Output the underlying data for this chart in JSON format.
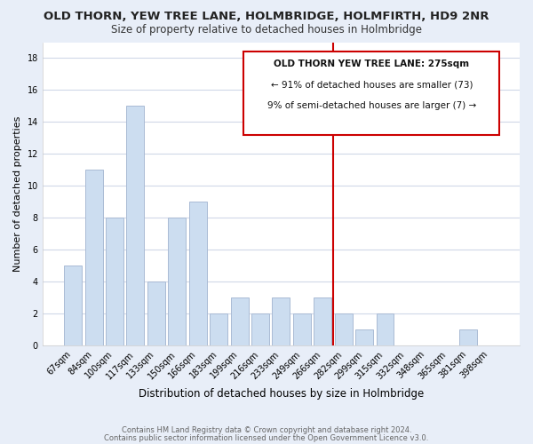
{
  "title": "OLD THORN, YEW TREE LANE, HOLMBRIDGE, HOLMFIRTH, HD9 2NR",
  "subtitle": "Size of property relative to detached houses in Holmbridge",
  "xlabel": "Distribution of detached houses by size in Holmbridge",
  "ylabel": "Number of detached properties",
  "bar_labels": [
    "67sqm",
    "84sqm",
    "100sqm",
    "117sqm",
    "133sqm",
    "150sqm",
    "166sqm",
    "183sqm",
    "199sqm",
    "216sqm",
    "233sqm",
    "249sqm",
    "266sqm",
    "282sqm",
    "299sqm",
    "315sqm",
    "332sqm",
    "348sqm",
    "365sqm",
    "381sqm",
    "398sqm"
  ],
  "bar_values": [
    5,
    11,
    8,
    15,
    4,
    8,
    9,
    2,
    3,
    2,
    3,
    2,
    3,
    2,
    1,
    2,
    0,
    0,
    0,
    1,
    0
  ],
  "bar_color": "#ccddf0",
  "bar_edge_color": "#aabbd4",
  "vline_x_idx": 13,
  "vline_color": "#cc0000",
  "annotation_title": "OLD THORN YEW TREE LANE: 275sqm",
  "annotation_line1": "← 91% of detached houses are smaller (73)",
  "annotation_line2": "9% of semi-detached houses are larger (7) →",
  "annotation_box_color": "#ffffff",
  "annotation_box_edge": "#cc0000",
  "footer1": "Contains HM Land Registry data © Crown copyright and database right 2024.",
  "footer2": "Contains public sector information licensed under the Open Government Licence v3.0.",
  "ylim": [
    0,
    19
  ],
  "yticks": [
    0,
    2,
    4,
    6,
    8,
    10,
    12,
    14,
    16,
    18
  ],
  "plot_bg_color": "#ffffff",
  "fig_bg_color": "#e8eef8",
  "grid_color": "#d0d8e8",
  "title_fontsize": 9.5,
  "subtitle_fontsize": 8.5,
  "ylabel_fontsize": 8.0,
  "xlabel_fontsize": 8.5,
  "tick_fontsize": 7.0,
  "footer_fontsize": 6.0
}
